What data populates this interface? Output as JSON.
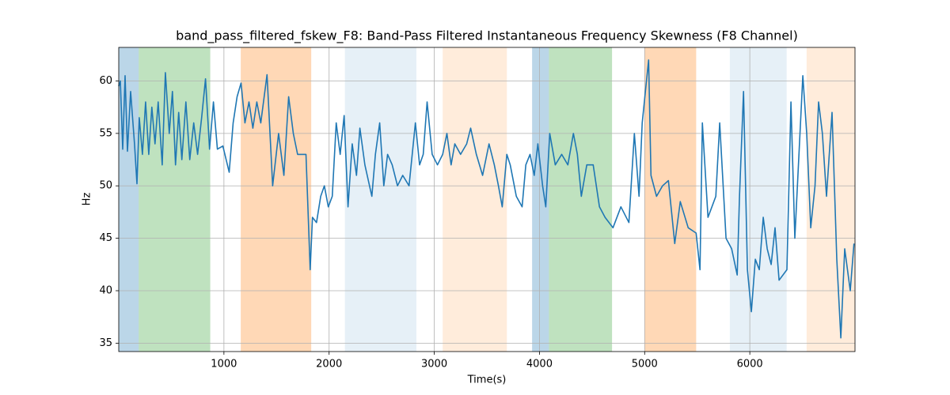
{
  "chart_data": {
    "type": "line",
    "title": "band_pass_filtered_fskew_F8: Band-Pass Filtered Instantaneous Frequency Skewness (F8 Channel)",
    "xlabel": "Time(s)",
    "ylabel": "Hz",
    "x": [
      0,
      15,
      38,
      60,
      83,
      113,
      150,
      173,
      195,
      225,
      255,
      285,
      315,
      345,
      375,
      413,
      443,
      480,
      510,
      540,
      570,
      600,
      638,
      675,
      713,
      750,
      788,
      825,
      863,
      900,
      938,
      990,
      1050,
      1088,
      1125,
      1163,
      1200,
      1238,
      1275,
      1313,
      1350,
      1410,
      1463,
      1520,
      1570,
      1615,
      1660,
      1700,
      1729,
      1780,
      1820,
      1842,
      1880,
      1920,
      1955,
      1992,
      2030,
      2068,
      2105,
      2143,
      2180,
      2220,
      2260,
      2293,
      2340,
      2406,
      2440,
      2481,
      2520,
      2556,
      2600,
      2650,
      2700,
      2760,
      2820,
      2860,
      2895,
      2932,
      2980,
      3030,
      3080,
      3120,
      3160,
      3195,
      3250,
      3308,
      3346,
      3400,
      3459,
      3520,
      3571,
      3610,
      3646,
      3690,
      3722,
      3780,
      3835,
      3870,
      3910,
      3950,
      3985,
      4030,
      4060,
      4098,
      4150,
      4211,
      4270,
      4323,
      4360,
      4398,
      4450,
      4511,
      4570,
      4624,
      4699,
      4774,
      4850,
      4902,
      4947,
      4977,
      5038,
      5060,
      5113,
      5170,
      5226,
      5286,
      5339,
      5414,
      5489,
      5526,
      5549,
      5602,
      5677,
      5714,
      5774,
      5827,
      5880,
      5902,
      5940,
      5977,
      6015,
      6052,
      6090,
      6128,
      6165,
      6203,
      6240,
      6278,
      6353,
      6391,
      6428,
      6504,
      6541,
      6579,
      6620,
      6654,
      6690,
      6729,
      6782,
      6827,
      6865,
      6902,
      6955,
      6990
    ],
    "values": [
      59.5,
      60,
      53.5,
      60.5,
      53.3,
      59,
      54,
      50.2,
      56.5,
      53,
      58,
      53,
      57.5,
      54,
      58,
      52,
      60.8,
      55,
      59,
      52,
      57,
      52.5,
      58,
      52.5,
      56,
      53,
      56.5,
      60.2,
      53.5,
      58,
      53.5,
      53.8,
      51.3,
      56,
      58.5,
      59.8,
      56,
      58,
      55.5,
      58,
      56,
      60.6,
      50,
      55,
      51,
      58.5,
      55,
      53,
      53,
      53,
      42,
      47,
      46.5,
      49,
      50,
      48,
      49,
      56,
      53,
      56.7,
      48,
      54,
      51,
      55.5,
      52,
      49,
      53,
      56,
      50,
      53,
      52,
      50,
      51,
      50,
      56,
      52,
      53,
      58,
      53,
      52,
      53,
      55,
      52,
      54,
      53,
      54,
      55.5,
      53,
      51,
      54,
      52,
      50,
      48,
      53,
      52,
      49,
      48,
      52,
      53,
      51,
      54,
      50,
      48,
      55,
      52,
      53,
      52,
      55,
      53,
      49,
      52,
      52,
      48,
      47,
      46,
      48,
      46.5,
      55,
      49,
      56,
      62,
      51,
      49,
      50,
      50.5,
      44.5,
      48.5,
      46,
      45.5,
      42,
      56,
      47,
      49,
      56,
      45,
      44,
      41.5,
      49,
      59,
      42,
      38,
      43,
      42,
      47,
      44,
      42.5,
      46,
      41,
      42,
      58,
      45,
      60.5,
      55,
      46,
      50,
      58,
      55,
      49,
      57,
      43,
      35.5,
      44,
      40,
      44.5
    ],
    "color": "#1f77b4",
    "spans": [
      {
        "start": 0,
        "end": 190,
        "color": "#1f77b4",
        "alpha": 0.3
      },
      {
        "start": 190,
        "end": 870,
        "color": "#2ca02c",
        "alpha": 0.3
      },
      {
        "start": 1160,
        "end": 1830,
        "color": "#ff7f0e",
        "alpha": 0.3
      },
      {
        "start": 2150,
        "end": 2830,
        "color": "#1f77b4",
        "alpha": 0.11
      },
      {
        "start": 3080,
        "end": 3690,
        "color": "#ff7f0e",
        "alpha": 0.15
      },
      {
        "start": 3930,
        "end": 4090,
        "color": "#1f77b4",
        "alpha": 0.3
      },
      {
        "start": 4090,
        "end": 4690,
        "color": "#2ca02c",
        "alpha": 0.3
      },
      {
        "start": 5000,
        "end": 5490,
        "color": "#ff7f0e",
        "alpha": 0.3
      },
      {
        "start": 5810,
        "end": 6350,
        "color": "#1f77b4",
        "alpha": 0.11
      },
      {
        "start": 6540,
        "end": 7000,
        "color": "#ff7f0e",
        "alpha": 0.15
      }
    ],
    "xlim": [
      0,
      7000
    ],
    "ylim": [
      34.2,
      63.2
    ],
    "xticks": [
      1000,
      2000,
      3000,
      4000,
      5000,
      6000
    ],
    "yticks": [
      35,
      40,
      45,
      50,
      55,
      60
    ],
    "grid": true
  }
}
